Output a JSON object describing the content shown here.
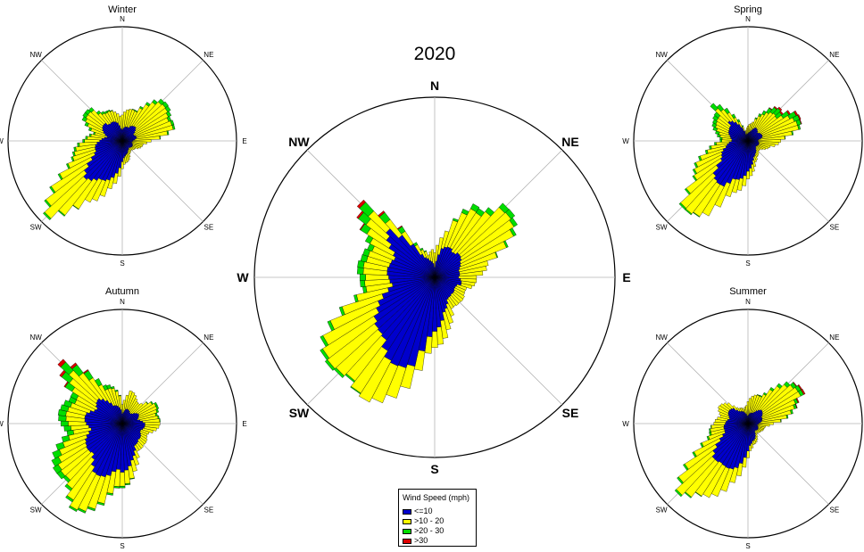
{
  "chart_data": [
    {
      "type": "polar-bar",
      "title": "2020",
      "labels": [
        "N",
        "NE",
        "E",
        "SE",
        "S",
        "SW",
        "W",
        "NW"
      ],
      "series_names": [
        "<=10",
        ">10 - 20",
        ">20 - 30",
        ">30"
      ],
      "colors": [
        "#0000cd",
        "#ffff00",
        "#00dd00",
        "#dd0000"
      ],
      "max_r": 30,
      "anchors_deg": [
        0,
        15,
        30,
        45,
        60,
        75,
        90,
        105,
        120,
        135,
        150,
        165,
        180,
        195,
        210,
        225,
        240,
        255,
        270,
        285,
        300,
        315,
        330,
        345
      ],
      "anchors": [
        [
          2,
          3,
          0,
          0
        ],
        [
          5,
          3,
          0,
          0
        ],
        [
          6,
          8,
          1,
          0
        ],
        [
          6,
          11,
          1,
          0
        ],
        [
          5,
          10,
          0.5,
          0
        ],
        [
          5,
          6,
          0,
          0
        ],
        [
          4,
          3,
          0,
          0
        ],
        [
          5,
          2,
          0,
          0
        ],
        [
          4,
          2,
          0,
          0
        ],
        [
          4,
          2,
          0,
          0
        ],
        [
          5,
          2,
          0,
          0
        ],
        [
          6,
          3,
          0,
          0
        ],
        [
          10,
          3,
          0,
          0
        ],
        [
          16,
          4,
          0,
          0
        ],
        [
          16,
          8,
          0,
          0
        ],
        [
          15,
          11,
          0.5,
          0
        ],
        [
          11,
          10,
          0.5,
          0
        ],
        [
          9,
          6,
          0.5,
          0
        ],
        [
          8,
          4,
          1,
          0
        ],
        [
          8,
          4,
          1,
          0
        ],
        [
          9,
          5,
          1,
          0
        ],
        [
          11,
          4,
          2,
          0.5
        ],
        [
          5,
          2,
          0.5,
          0
        ],
        [
          3,
          1,
          0,
          0
        ]
      ]
    },
    {
      "type": "polar-bar",
      "title": "Winter",
      "labels": [
        "N",
        "NE",
        "E",
        "SE",
        "S",
        "SW",
        "W",
        "NW"
      ],
      "series_names": [
        "<=10",
        ">10 - 20",
        ">20 - 30",
        ">30"
      ],
      "colors": [
        "#0000cd",
        "#ffff00",
        "#00dd00",
        "#dd0000"
      ],
      "max_r": 30,
      "anchors_deg": [
        0,
        15,
        30,
        45,
        60,
        75,
        90,
        105,
        120,
        135,
        150,
        165,
        180,
        195,
        210,
        225,
        240,
        255,
        270,
        285,
        300,
        315,
        330,
        345
      ],
      "anchors": [
        [
          3,
          4,
          0,
          0
        ],
        [
          4,
          5,
          0,
          0
        ],
        [
          5,
          6,
          0.5,
          0
        ],
        [
          5,
          9,
          1,
          0
        ],
        [
          4,
          12,
          1,
          0
        ],
        [
          4,
          10,
          0.5,
          0
        ],
        [
          3,
          5,
          0,
          0
        ],
        [
          3,
          3,
          0,
          0
        ],
        [
          3,
          1,
          0,
          0
        ],
        [
          3,
          1,
          0,
          0
        ],
        [
          3,
          1,
          0,
          0
        ],
        [
          4,
          2,
          0,
          0
        ],
        [
          6,
          2,
          0,
          0
        ],
        [
          10,
          3,
          0,
          0
        ],
        [
          14,
          8,
          0,
          0
        ],
        [
          14,
          14,
          0.5,
          0
        ],
        [
          10,
          10,
          0.5,
          0
        ],
        [
          8,
          6,
          0.5,
          0
        ],
        [
          6,
          4,
          0.5,
          0
        ],
        [
          5,
          4,
          0.5,
          0
        ],
        [
          6,
          5,
          1,
          0
        ],
        [
          7,
          5,
          1,
          0
        ],
        [
          6,
          3,
          0.5,
          0
        ],
        [
          5,
          3,
          0,
          0
        ]
      ]
    },
    {
      "type": "polar-bar",
      "title": "Spring",
      "labels": [
        "N",
        "NE",
        "E",
        "SE",
        "S",
        "SW",
        "W",
        "NW"
      ],
      "series_names": [
        "<=10",
        ">10 - 20",
        ">20 - 30",
        ">30"
      ],
      "colors": [
        "#0000cd",
        "#ffff00",
        "#00dd00",
        "#dd0000"
      ],
      "max_r": 30,
      "anchors_deg": [
        0,
        15,
        30,
        45,
        60,
        75,
        90,
        105,
        120,
        135,
        150,
        165,
        180,
        195,
        210,
        225,
        240,
        255,
        270,
        285,
        300,
        315,
        330,
        345
      ],
      "anchors": [
        [
          2,
          2,
          0,
          0
        ],
        [
          3,
          3,
          0,
          0
        ],
        [
          4,
          4,
          1,
          0
        ],
        [
          4,
          7,
          2,
          0.5
        ],
        [
          4,
          9,
          2,
          0.5
        ],
        [
          4,
          10,
          0.5,
          0
        ],
        [
          3,
          7,
          0,
          0
        ],
        [
          3,
          3,
          0,
          0
        ],
        [
          3,
          2,
          0,
          0
        ],
        [
          3,
          1,
          0,
          0
        ],
        [
          4,
          1,
          0,
          0
        ],
        [
          6,
          2,
          0,
          0
        ],
        [
          8,
          2,
          0,
          0
        ],
        [
          12,
          4,
          0,
          0
        ],
        [
          14,
          9,
          0,
          0
        ],
        [
          13,
          12,
          0.5,
          0
        ],
        [
          9,
          9,
          0.5,
          0
        ],
        [
          6,
          5,
          0.5,
          0
        ],
        [
          5,
          3,
          0.5,
          0
        ],
        [
          5,
          3,
          1,
          0
        ],
        [
          6,
          4,
          1,
          0
        ],
        [
          8,
          5,
          2,
          0
        ],
        [
          5,
          2,
          1,
          0
        ],
        [
          2,
          1,
          0,
          0
        ]
      ]
    },
    {
      "type": "polar-bar",
      "title": "Autumn",
      "labels": [
        "N",
        "NE",
        "E",
        "SE",
        "S",
        "SW",
        "W",
        "NW"
      ],
      "series_names": [
        "<=10",
        ">10 - 20",
        ">20 - 30",
        ">30"
      ],
      "colors": [
        "#0000cd",
        "#ffff00",
        "#00dd00",
        "#dd0000"
      ],
      "max_r": 30,
      "anchors_deg": [
        0,
        15,
        30,
        45,
        60,
        75,
        90,
        105,
        120,
        135,
        150,
        165,
        180,
        195,
        210,
        225,
        240,
        255,
        270,
        285,
        300,
        315,
        330,
        345
      ],
      "anchors": [
        [
          3,
          3,
          0,
          0
        ],
        [
          4,
          5,
          0,
          0
        ],
        [
          4,
          4,
          0,
          0
        ],
        [
          4,
          4,
          0,
          0
        ],
        [
          5,
          5,
          0.5,
          0
        ],
        [
          5,
          6,
          0.5,
          0
        ],
        [
          6,
          4,
          0,
          0
        ],
        [
          6,
          3,
          0,
          0
        ],
        [
          6,
          2,
          0,
          0
        ],
        [
          6,
          2,
          0,
          0
        ],
        [
          8,
          2,
          0,
          0
        ],
        [
          10,
          3,
          0,
          0
        ],
        [
          14,
          4,
          0.5,
          0
        ],
        [
          15,
          8,
          0.5,
          0
        ],
        [
          15,
          11,
          0.5,
          0
        ],
        [
          13,
          11,
          1,
          0
        ],
        [
          11,
          8,
          2,
          0
        ],
        [
          10,
          6,
          2,
          0
        ],
        [
          10,
          5,
          2,
          0
        ],
        [
          10,
          5,
          2,
          0
        ],
        [
          9,
          7,
          2,
          0
        ],
        [
          9,
          10,
          3,
          1
        ],
        [
          7,
          6,
          2,
          0
        ],
        [
          5,
          5,
          0.5,
          0
        ]
      ]
    },
    {
      "type": "polar-bar",
      "title": "Summer",
      "labels": [
        "N",
        "NE",
        "E",
        "SE",
        "S",
        "SW",
        "W",
        "NW"
      ],
      "series_names": [
        "<=10",
        ">10 - 20",
        ">20 - 30",
        ">30"
      ],
      "colors": [
        "#0000cd",
        "#ffff00",
        "#00dd00",
        "#dd0000"
      ],
      "max_r": 30,
      "anchors_deg": [
        0,
        15,
        30,
        45,
        60,
        75,
        90,
        105,
        120,
        135,
        150,
        165,
        180,
        195,
        210,
        225,
        240,
        255,
        270,
        285,
        300,
        315,
        330,
        345
      ],
      "anchors": [
        [
          2,
          4,
          0,
          0
        ],
        [
          3,
          5,
          0,
          0
        ],
        [
          4,
          6,
          0.5,
          0
        ],
        [
          5,
          9,
          1,
          0
        ],
        [
          5,
          13,
          1,
          0.5
        ],
        [
          4,
          8,
          0.5,
          0
        ],
        [
          3,
          4,
          0,
          0
        ],
        [
          3,
          2,
          0,
          0
        ],
        [
          3,
          1,
          0,
          0
        ],
        [
          3,
          1,
          0,
          0
        ],
        [
          4,
          1,
          0,
          0
        ],
        [
          5,
          1,
          0,
          0
        ],
        [
          8,
          2,
          0,
          0
        ],
        [
          12,
          4,
          0,
          0
        ],
        [
          15,
          11,
          0,
          0
        ],
        [
          13,
          13,
          0.5,
          0
        ],
        [
          9,
          8,
          0.5,
          0
        ],
        [
          7,
          4,
          0.5,
          0
        ],
        [
          6,
          3,
          0,
          0
        ],
        [
          6,
          3,
          0,
          0
        ],
        [
          6,
          3,
          0,
          0
        ],
        [
          6,
          2,
          0,
          0
        ],
        [
          4,
          1,
          0,
          0
        ],
        [
          3,
          1,
          0,
          0
        ]
      ]
    }
  ],
  "legend": {
    "title": "Wind Speed (mph)",
    "items": [
      {
        "label": "<=10",
        "color": "#0000cd"
      },
      {
        "label": ">10 - 20",
        "color": "#ffff00"
      },
      {
        "label": ">20 - 30",
        "color": "#00dd00"
      },
      {
        "label": ">30",
        "color": "#dd0000"
      }
    ]
  }
}
